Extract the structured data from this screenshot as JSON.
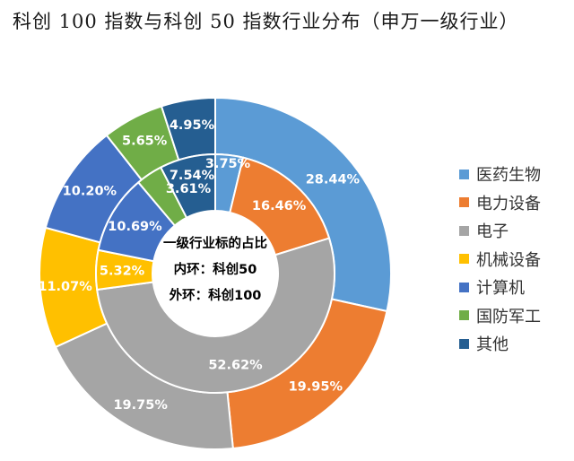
{
  "title": "科创 100 指数与科创 50 指数行业分布（申万一级行业）",
  "colors": {
    "医药生物": "#5b9bd5",
    "电力设备": "#ed7d31",
    "电子": "#a5a5a5",
    "机械设备": "#ffc000",
    "计算机": "#4472c4",
    "国防军工": "#70ad47",
    "其他": "#255e91"
  },
  "chart_data": {
    "type": "pie",
    "subtype": "doughnut",
    "categories": [
      "医药生物",
      "电力设备",
      "电子",
      "机械设备",
      "计算机",
      "国防军工",
      "其他"
    ],
    "series": [
      {
        "ring": "outer",
        "values": [
          28.44,
          19.95,
          19.75,
          11.07,
          10.2,
          5.65,
          4.95
        ],
        "labels": [
          "28.44%",
          "19.95%",
          "19.75%",
          "11.07%",
          "10.20%",
          "5.65%",
          "4.95%"
        ]
      },
      {
        "ring": "inner",
        "values": [
          3.75,
          16.46,
          52.62,
          5.32,
          10.69,
          3.61,
          7.54
        ],
        "labels": [
          "3.75%",
          "16.46%",
          "52.62%",
          "5.32%",
          "10.69%",
          "3.61%",
          "7.54%"
        ]
      }
    ],
    "center_text": [
      "一级行业标的占比",
      "内环：科创50",
      "外环：科创100"
    ],
    "legend_position": "right"
  }
}
